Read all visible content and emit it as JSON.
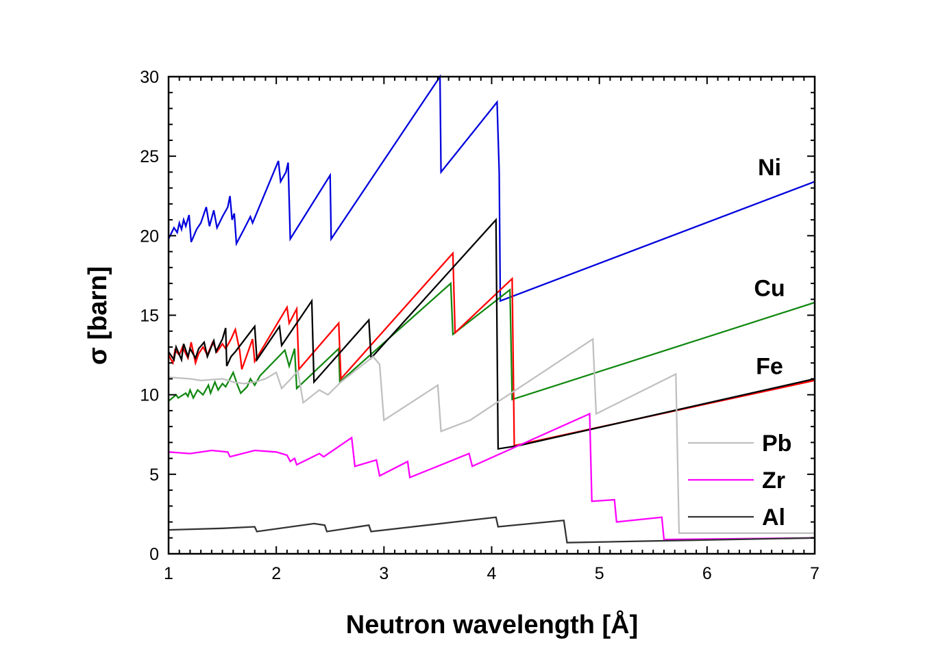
{
  "chart_data": {
    "type": "line",
    "xlabel": "Neutron wavelength [Å]",
    "ylabel": "σ [barn]",
    "xlim": [
      1,
      7
    ],
    "ylim": [
      0,
      30
    ],
    "xticks": [
      1,
      2,
      3,
      4,
      5,
      6,
      7
    ],
    "yticks": [
      0,
      5,
      10,
      15,
      20,
      25,
      30
    ],
    "grid": false,
    "legend_position": "bottom-right",
    "legend_entries": [
      "Pb",
      "Zr",
      "Al"
    ],
    "inline_labels": [
      {
        "text": "Ni",
        "x": 6.58,
        "y": 23.8
      },
      {
        "text": "Cu",
        "x": 6.58,
        "y": 16.2
      },
      {
        "text": "Fe",
        "x": 6.58,
        "y": 11.3
      }
    ],
    "series": [
      {
        "name": "Ni",
        "color": "#0000dd",
        "x": [
          1.0,
          1.05,
          1.08,
          1.1,
          1.12,
          1.14,
          1.16,
          1.19,
          1.21,
          1.26,
          1.3,
          1.35,
          1.38,
          1.42,
          1.45,
          1.5,
          1.55,
          1.57,
          1.59,
          1.61,
          1.63,
          1.7,
          1.76,
          1.78,
          2.02,
          2.04,
          2.09,
          2.11,
          2.13,
          2.5,
          2.51,
          3.52,
          3.53,
          4.05,
          4.07,
          4.08,
          7.0
        ],
        "values": [
          19.8,
          20.5,
          20.2,
          20.8,
          20.4,
          21.0,
          20.6,
          21.3,
          19.6,
          20.4,
          20.8,
          21.8,
          20.6,
          21.6,
          20.5,
          21.2,
          21.8,
          22.5,
          21.0,
          21.4,
          19.5,
          20.4,
          21.2,
          20.8,
          24.7,
          23.4,
          24.0,
          24.6,
          19.8,
          23.8,
          19.8,
          30.0,
          24.0,
          28.4,
          24.0,
          15.9,
          23.4
        ]
      },
      {
        "name": "Cu",
        "color": "#118811",
        "x": [
          1.0,
          1.07,
          1.09,
          1.16,
          1.18,
          1.2,
          1.23,
          1.27,
          1.32,
          1.37,
          1.39,
          1.43,
          1.46,
          1.5,
          1.53,
          1.57,
          1.6,
          1.64,
          1.67,
          1.73,
          1.76,
          1.8,
          1.85,
          2.08,
          2.12,
          2.17,
          2.19,
          2.58,
          2.59,
          3.62,
          3.64,
          4.17,
          4.19,
          7.0
        ],
        "values": [
          9.6,
          10.0,
          9.8,
          10.1,
          9.9,
          10.3,
          9.8,
          10.3,
          10.0,
          10.6,
          10.1,
          10.8,
          10.3,
          10.7,
          10.5,
          11.0,
          11.4,
          10.6,
          10.1,
          10.5,
          11.0,
          10.6,
          11.2,
          12.8,
          11.8,
          12.9,
          10.4,
          12.9,
          10.8,
          17.0,
          13.8,
          16.6,
          9.7,
          15.8
        ]
      },
      {
        "name": "Fe",
        "color": "#ff0000",
        "x": [
          1.0,
          1.04,
          1.06,
          1.1,
          1.13,
          1.18,
          1.21,
          1.25,
          1.28,
          1.32,
          1.36,
          1.41,
          1.45,
          1.5,
          1.53,
          1.58,
          1.62,
          1.66,
          1.68,
          1.78,
          1.8,
          2.1,
          2.12,
          2.19,
          2.21,
          2.58,
          2.6,
          3.64,
          3.66,
          4.19,
          4.21,
          7.0
        ],
        "values": [
          12.5,
          12.0,
          12.8,
          12.5,
          13.0,
          12.3,
          13.3,
          12.0,
          12.6,
          13.0,
          12.5,
          13.3,
          12.7,
          13.2,
          12.9,
          13.5,
          14.1,
          12.8,
          11.6,
          13.5,
          12.1,
          15.5,
          14.5,
          15.4,
          11.6,
          14.5,
          11.0,
          18.9,
          13.9,
          17.3,
          6.8,
          10.9
        ]
      },
      {
        "name": "Fe (black)",
        "color": "#000000",
        "x": [
          1.0,
          1.05,
          1.07,
          1.12,
          1.14,
          1.18,
          1.2,
          1.25,
          1.28,
          1.33,
          1.36,
          1.42,
          1.44,
          1.5,
          1.53,
          1.54,
          1.58,
          1.62,
          1.8,
          1.82,
          2.03,
          2.05,
          2.33,
          2.35,
          2.86,
          2.88,
          4.04,
          4.06,
          4.25,
          7.0
        ],
        "values": [
          12.7,
          12.2,
          13.0,
          12.2,
          13.2,
          12.4,
          12.9,
          12.3,
          12.9,
          13.3,
          12.4,
          13.4,
          12.7,
          13.5,
          14.2,
          11.8,
          12.4,
          12.7,
          14.3,
          12.2,
          14.3,
          13.1,
          15.9,
          10.8,
          14.7,
          12.3,
          21.0,
          6.6,
          6.8,
          11.0
        ]
      },
      {
        "name": "Pb",
        "color": "#c0c0c0",
        "x": [
          1.0,
          1.2,
          1.3,
          1.5,
          1.6,
          1.7,
          1.8,
          1.9,
          2.0,
          2.05,
          2.15,
          2.2,
          2.25,
          2.4,
          2.48,
          2.6,
          2.9,
          2.96,
          3.0,
          3.5,
          3.53,
          3.8,
          4.94,
          4.97,
          5.71,
          5.74,
          7.0
        ],
        "values": [
          11.1,
          11.0,
          10.9,
          11.0,
          10.8,
          10.7,
          10.8,
          11.0,
          11.4,
          10.4,
          11.1,
          11.5,
          9.5,
          10.3,
          10.0,
          10.8,
          12.4,
          11.9,
          8.4,
          10.6,
          7.7,
          8.4,
          13.5,
          8.8,
          11.3,
          1.3,
          1.3
        ]
      },
      {
        "name": "Zr",
        "color": "#ff00ff",
        "x": [
          1.0,
          1.2,
          1.4,
          1.55,
          1.57,
          1.8,
          2.0,
          2.1,
          2.13,
          2.17,
          2.19,
          2.4,
          2.44,
          2.7,
          2.73,
          2.93,
          2.96,
          3.22,
          3.24,
          3.79,
          3.82,
          4.91,
          4.93,
          5.14,
          5.16,
          5.58,
          5.6,
          7.0
        ],
        "values": [
          6.4,
          6.3,
          6.5,
          6.4,
          6.1,
          6.5,
          6.4,
          6.2,
          5.8,
          6.0,
          5.6,
          6.3,
          6.1,
          7.3,
          5.5,
          5.9,
          4.9,
          5.8,
          4.8,
          6.3,
          5.5,
          8.8,
          3.3,
          3.4,
          2.0,
          2.3,
          0.9,
          1.0
        ]
      },
      {
        "name": "Al",
        "color": "#333333",
        "x": [
          1.0,
          1.5,
          1.8,
          1.82,
          2.35,
          2.45,
          2.47,
          2.86,
          2.88,
          4.04,
          4.06,
          4.67,
          4.7,
          7.0
        ],
        "values": [
          1.5,
          1.6,
          1.7,
          1.4,
          1.9,
          1.8,
          1.4,
          1.8,
          1.4,
          2.3,
          1.7,
          2.1,
          0.7,
          1.0
        ]
      }
    ]
  }
}
